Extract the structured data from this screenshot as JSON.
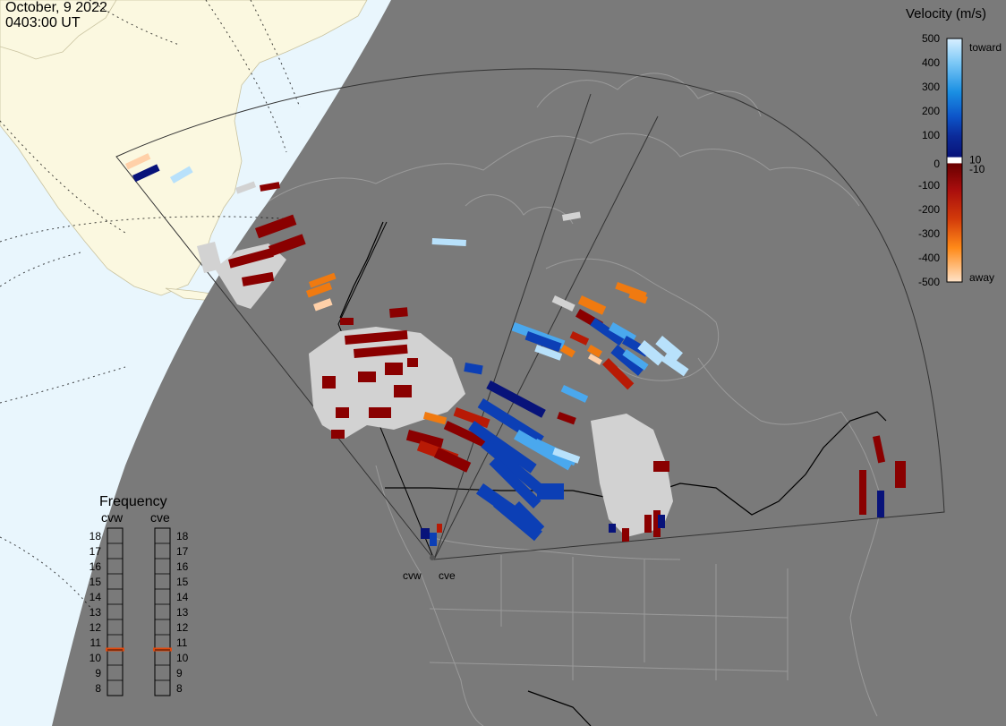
{
  "header": {
    "date": "October, 9 2022",
    "time": "0403:00 UT"
  },
  "colors": {
    "ocean": "#e9f6fd",
    "land_day": "#fbf8e0",
    "night": "#7a7a7a",
    "border": "#9a9a9a",
    "ground_scatter": "#d2d2d2"
  },
  "velocity_scale": {
    "title": "Velocity (m/s)",
    "ticks": [
      "500",
      "400",
      "300",
      "200",
      "100",
      "10",
      "0",
      "-10",
      "-100",
      "-200",
      "-300",
      "-400",
      "-500"
    ],
    "toward_label": "toward",
    "away_label": "away",
    "stops": [
      "#d8efff",
      "#7cc8f6",
      "#1a8fe3",
      "#0d55c9",
      "#0b2b9a",
      "#08137a",
      "#ffffff",
      "#6a0000",
      "#a80d0d",
      "#d23a0a",
      "#f07a10",
      "#ff9b24",
      "#ffd9b8"
    ]
  },
  "frequency_panel": {
    "title": "Frequency",
    "radars": [
      {
        "name": "cvw",
        "selected_mhz": 11
      },
      {
        "name": "cve",
        "selected_mhz": 11
      }
    ],
    "levels": [
      "18",
      "17",
      "16",
      "15",
      "14",
      "13",
      "12",
      "11",
      "10",
      "9",
      "8"
    ],
    "marker_color": "#e04a10"
  },
  "radar_sites": [
    {
      "id": "cvw",
      "label": "cvw"
    },
    {
      "id": "cve",
      "label": "cve"
    }
  ]
}
